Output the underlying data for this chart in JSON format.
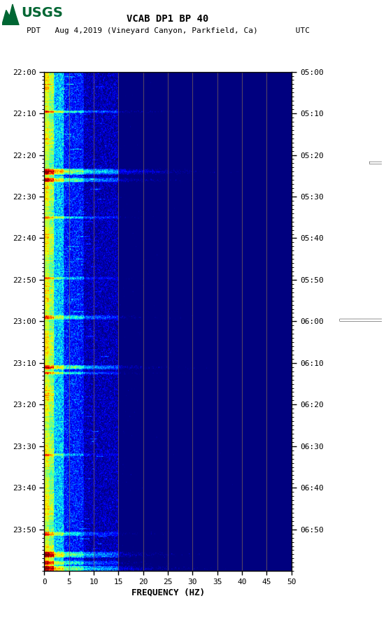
{
  "title_line1": "VCAB DP1 BP 40",
  "title_line2": "PDT   Aug 4,2019 (Vineyard Canyon, Parkfield, Ca)        UTC",
  "xlabel": "FREQUENCY (HZ)",
  "freq_min": 0,
  "freq_max": 50,
  "freq_ticks": [
    0,
    5,
    10,
    15,
    20,
    25,
    30,
    35,
    40,
    45,
    50
  ],
  "freq_gridlines": [
    5,
    10,
    15,
    20,
    25,
    30,
    35,
    40,
    45
  ],
  "time_labels_left": [
    "22:00",
    "22:10",
    "22:20",
    "22:30",
    "22:40",
    "22:50",
    "23:00",
    "23:10",
    "23:20",
    "23:30",
    "23:40",
    "23:50"
  ],
  "time_labels_right": [
    "05:00",
    "05:10",
    "05:20",
    "05:30",
    "05:40",
    "05:50",
    "06:00",
    "06:10",
    "06:20",
    "06:30",
    "06:40",
    "06:50"
  ],
  "n_time_steps": 600,
  "n_freq_bins": 500,
  "colormap": "jet",
  "vmin": -2.5,
  "vmax": 3.5,
  "gridline_color": "#8B7355",
  "gridline_alpha": 0.6,
  "background_color": "#ffffff",
  "usgs_green": "#006633"
}
